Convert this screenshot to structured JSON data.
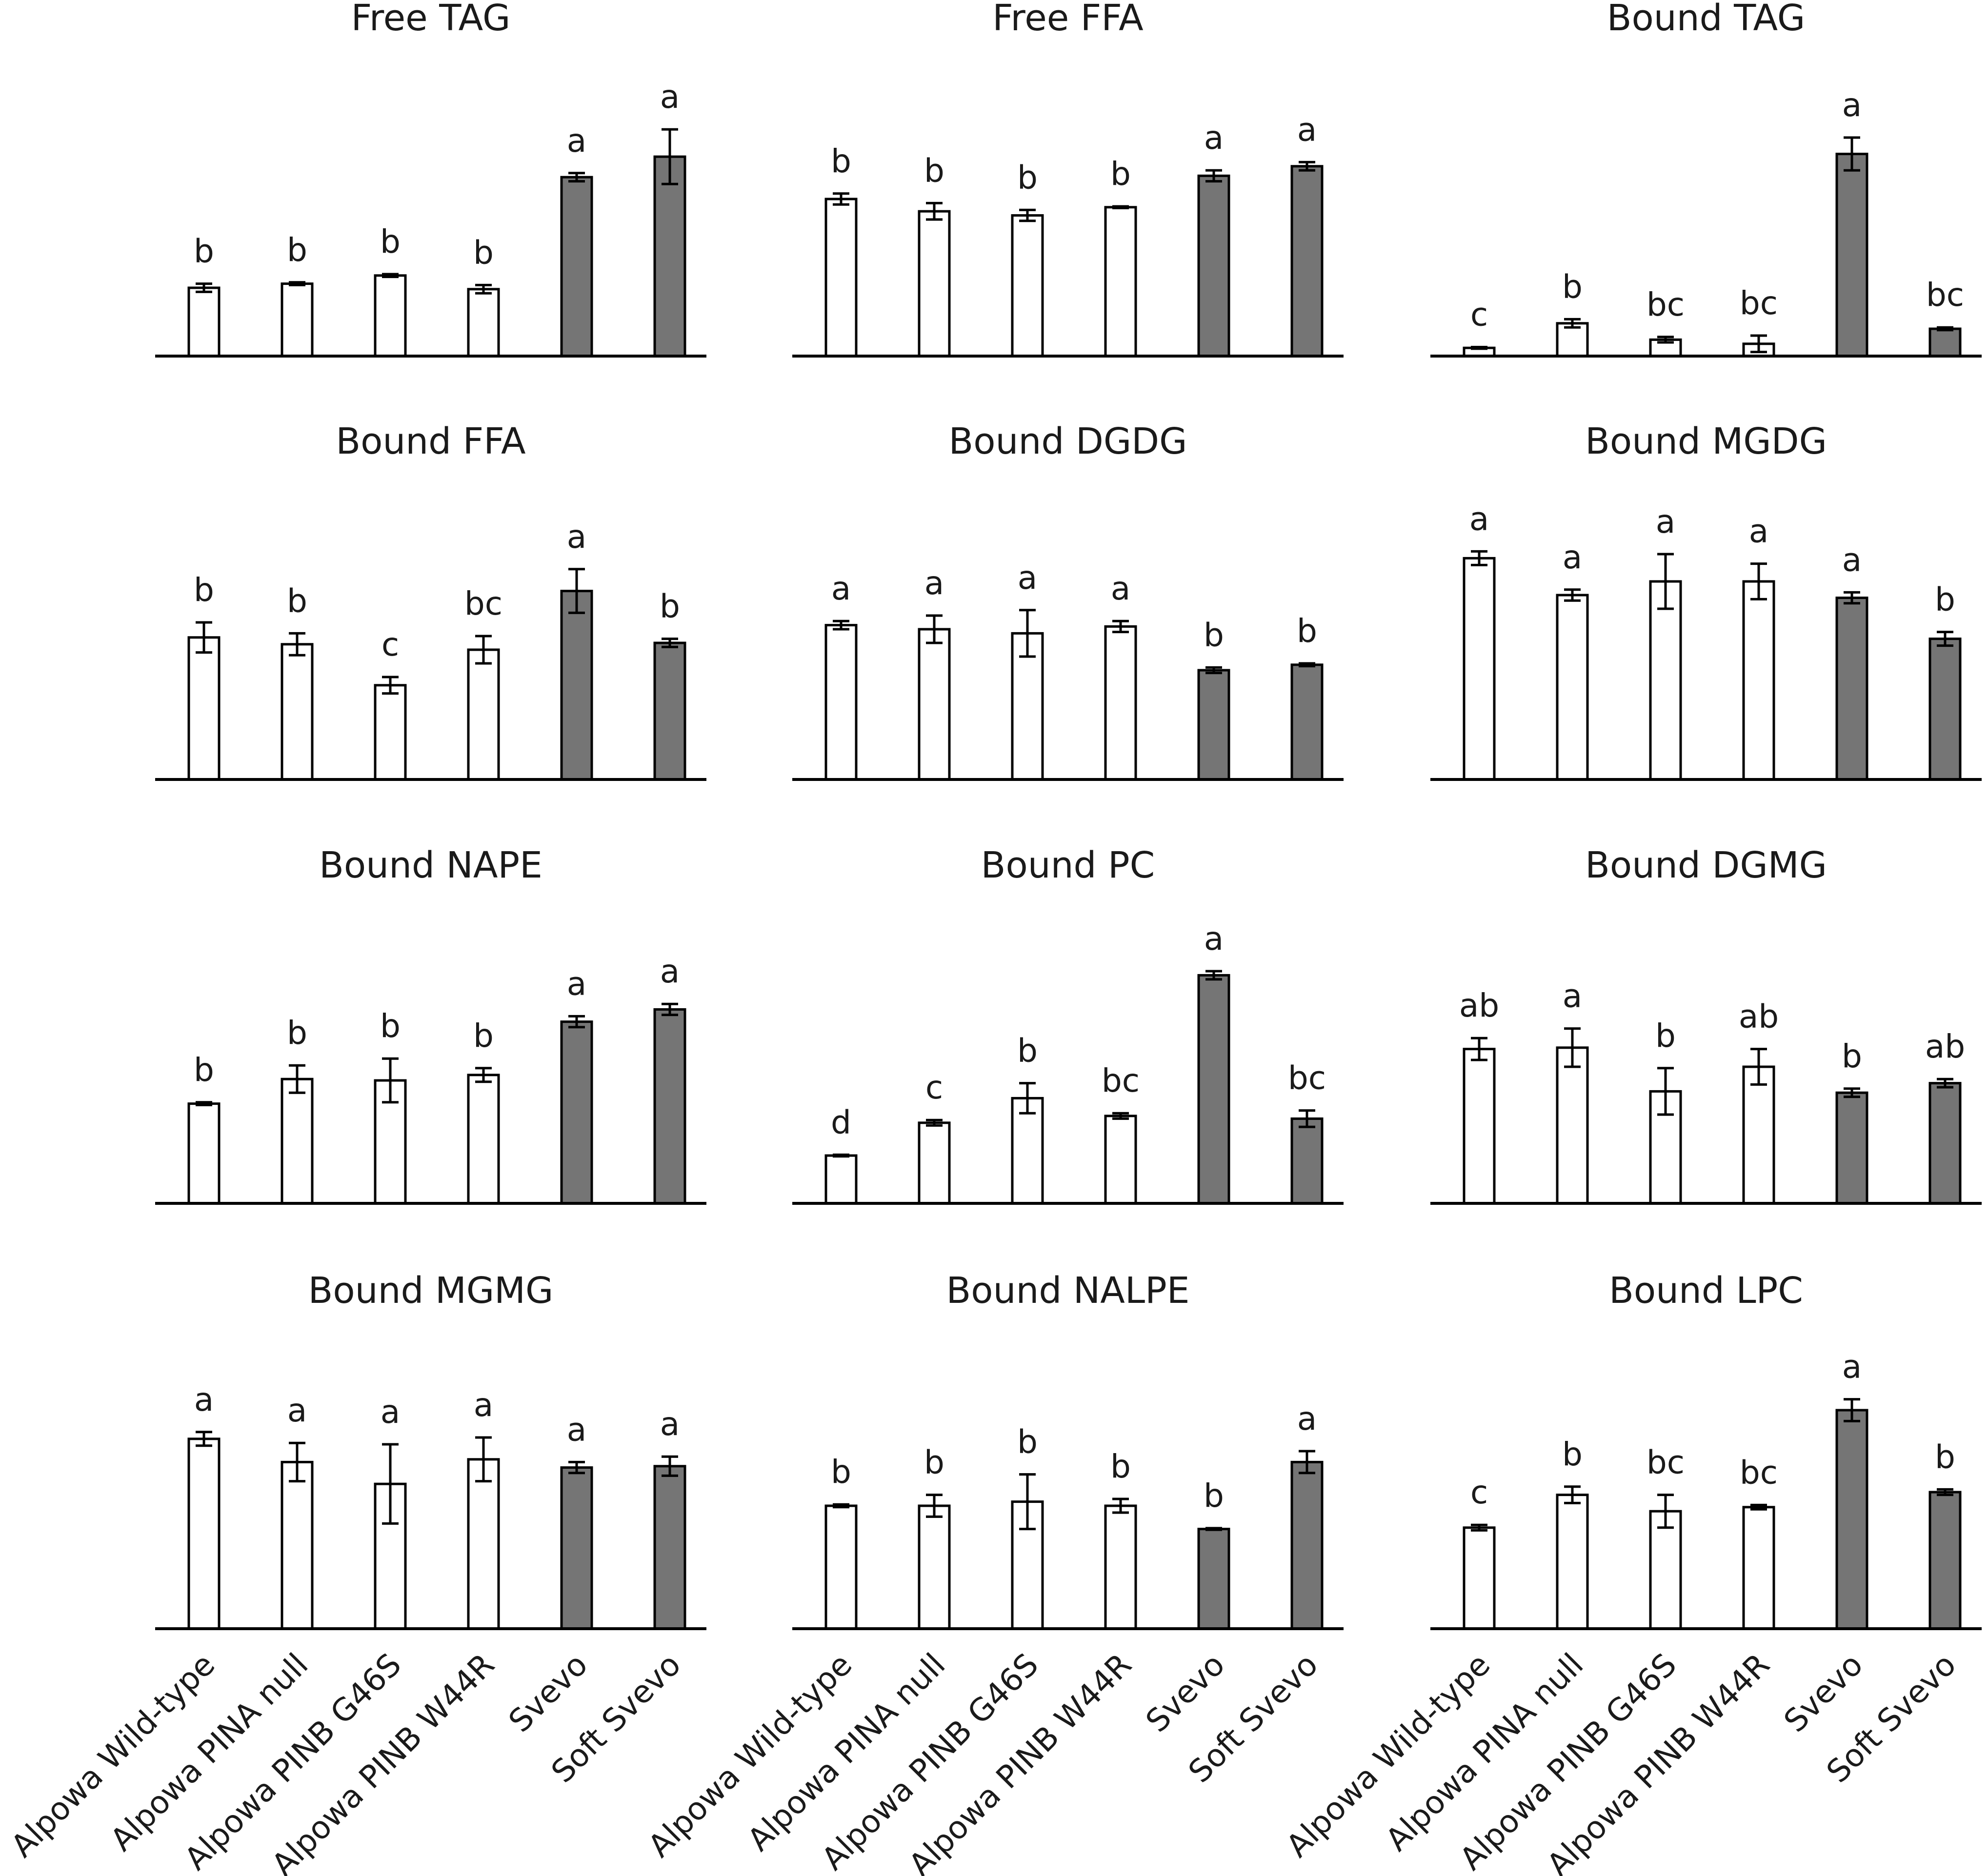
{
  "chart_data": [
    {
      "type": "bar",
      "title": "Free TAG",
      "categories": [
        "Alpowa Wild-type",
        "Alpowa PINA null",
        "Alpowa PINB G46S",
        "Alpowa PINB W44R",
        "Svevo",
        "Soft Svevo"
      ],
      "values": [
        0.25,
        0.265,
        0.295,
        0.245,
        0.655,
        0.73
      ],
      "errors": [
        0.015,
        0.005,
        0.005,
        0.015,
        0.015,
        0.1
      ],
      "labels": [
        "b",
        "b",
        "b",
        "b",
        "a",
        "a"
      ],
      "fills": [
        "#ffffff",
        "#ffffff",
        "#ffffff",
        "#ffffff",
        "#757575",
        "#757575"
      ],
      "ylim": [
        0,
        1
      ]
    },
    {
      "type": "bar",
      "title": "Free FFA",
      "categories": [
        "Alpowa Wild-type",
        "Alpowa PINA null",
        "Alpowa PINB G46S",
        "Alpowa PINB W44R",
        "Svevo",
        "Soft Svevo"
      ],
      "values": [
        0.575,
        0.53,
        0.515,
        0.545,
        0.66,
        0.695
      ],
      "errors": [
        0.02,
        0.03,
        0.02,
        0.003,
        0.02,
        0.015
      ],
      "labels": [
        "b",
        "b",
        "b",
        "b",
        "a",
        "a"
      ],
      "fills": [
        "#ffffff",
        "#ffffff",
        "#ffffff",
        "#ffffff",
        "#757575",
        "#757575"
      ],
      "ylim": [
        0,
        1
      ]
    },
    {
      "type": "bar",
      "title": "Bound TAG",
      "categories": [
        "Alpowa Wild-type",
        "Alpowa PINA null",
        "Alpowa PINB G46S",
        "Alpowa PINB W44R",
        "Svevo",
        "Soft Svevo"
      ],
      "values": [
        0.03,
        0.12,
        0.06,
        0.045,
        0.74,
        0.1
      ],
      "errors": [
        0.003,
        0.015,
        0.01,
        0.03,
        0.06,
        0.005
      ],
      "labels": [
        "c",
        "b",
        "bc",
        "bc",
        "a",
        "bc"
      ],
      "fills": [
        "#ffffff",
        "#ffffff",
        "#ffffff",
        "#ffffff",
        "#757575",
        "#757575"
      ],
      "ylim": [
        0,
        1
      ]
    },
    {
      "type": "bar",
      "title": "Bound FFA",
      "categories": [
        "Alpowa Wild-type",
        "Alpowa PINA null",
        "Alpowa PINB G46S",
        "Alpowa PINB W44R",
        "Svevo",
        "Soft Svevo"
      ],
      "values": [
        0.52,
        0.495,
        0.345,
        0.475,
        0.69,
        0.5
      ],
      "errors": [
        0.055,
        0.04,
        0.03,
        0.05,
        0.08,
        0.015
      ],
      "labels": [
        "b",
        "b",
        "c",
        "bc",
        "a",
        "b"
      ],
      "fills": [
        "#ffffff",
        "#ffffff",
        "#ffffff",
        "#ffffff",
        "#757575",
        "#757575"
      ],
      "ylim": [
        0,
        1
      ]
    },
    {
      "type": "bar",
      "title": "Bound DGDG",
      "categories": [
        "Alpowa Wild-type",
        "Alpowa PINA null",
        "Alpowa PINB G46S",
        "Alpowa PINB W44R",
        "Svevo",
        "Soft Svevo"
      ],
      "values": [
        0.565,
        0.55,
        0.535,
        0.56,
        0.4,
        0.42
      ],
      "errors": [
        0.015,
        0.05,
        0.085,
        0.02,
        0.01,
        0.005
      ],
      "labels": [
        "a",
        "a",
        "a",
        "a",
        "b",
        "b"
      ],
      "fills": [
        "#ffffff",
        "#ffffff",
        "#ffffff",
        "#ffffff",
        "#757575",
        "#757575"
      ],
      "ylim": [
        0,
        1
      ]
    },
    {
      "type": "bar",
      "title": "Bound MGDG",
      "categories": [
        "Alpowa Wild-type",
        "Alpowa PINA null",
        "Alpowa PINB G46S",
        "Alpowa PINB W44R",
        "Svevo",
        "Soft Svevo"
      ],
      "values": [
        0.81,
        0.675,
        0.725,
        0.725,
        0.665,
        0.515
      ],
      "errors": [
        0.025,
        0.02,
        0.1,
        0.065,
        0.02,
        0.025
      ],
      "labels": [
        "a",
        "a",
        "a",
        "a",
        "a",
        "b"
      ],
      "fills": [
        "#ffffff",
        "#ffffff",
        "#ffffff",
        "#ffffff",
        "#757575",
        "#757575"
      ],
      "ylim": [
        0,
        1
      ]
    },
    {
      "type": "bar",
      "title": "Bound NAPE",
      "categories": [
        "Alpowa Wild-type",
        "Alpowa PINA null",
        "Alpowa PINB G46S",
        "Alpowa PINB W44R",
        "Svevo",
        "Soft Svevo"
      ],
      "values": [
        0.365,
        0.455,
        0.45,
        0.47,
        0.665,
        0.71
      ],
      "errors": [
        0.005,
        0.05,
        0.08,
        0.025,
        0.02,
        0.02
      ],
      "labels": [
        "b",
        "b",
        "b",
        "b",
        "a",
        "a"
      ],
      "fills": [
        "#ffffff",
        "#ffffff",
        "#ffffff",
        "#ffffff",
        "#757575",
        "#757575"
      ],
      "ylim": [
        0,
        1
      ]
    },
    {
      "type": "bar",
      "title": "Bound PC",
      "categories": [
        "Alpowa Wild-type",
        "Alpowa PINA null",
        "Alpowa PINB G46S",
        "Alpowa PINB W44R",
        "Svevo",
        "Soft Svevo"
      ],
      "values": [
        0.175,
        0.295,
        0.385,
        0.32,
        0.835,
        0.31
      ],
      "errors": [
        0.003,
        0.01,
        0.055,
        0.01,
        0.015,
        0.03
      ],
      "labels": [
        "d",
        "c",
        "b",
        "bc",
        "a",
        "bc"
      ],
      "fills": [
        "#ffffff",
        "#ffffff",
        "#ffffff",
        "#ffffff",
        "#757575",
        "#757575"
      ],
      "ylim": [
        0,
        1
      ]
    },
    {
      "type": "bar",
      "title": "Bound DGMG",
      "categories": [
        "Alpowa Wild-type",
        "Alpowa PINA null",
        "Alpowa PINB G46S",
        "Alpowa PINB W44R",
        "Svevo",
        "Soft Svevo"
      ],
      "values": [
        0.565,
        0.57,
        0.41,
        0.5,
        0.405,
        0.44
      ],
      "errors": [
        0.04,
        0.07,
        0.085,
        0.065,
        0.015,
        0.015
      ],
      "labels": [
        "ab",
        "a",
        "b",
        "ab",
        "b",
        "ab"
      ],
      "fills": [
        "#ffffff",
        "#ffffff",
        "#ffffff",
        "#ffffff",
        "#757575",
        "#757575"
      ],
      "ylim": [
        0,
        1
      ]
    },
    {
      "type": "bar",
      "title": "Bound MGMG",
      "categories": [
        "Alpowa Wild-type",
        "Alpowa PINA null",
        "Alpowa PINB G46S",
        "Alpowa PINB W44R",
        "Svevo",
        "Soft Svevo"
      ],
      "values": [
        0.695,
        0.61,
        0.53,
        0.62,
        0.59,
        0.595
      ],
      "errors": [
        0.025,
        0.07,
        0.145,
        0.08,
        0.02,
        0.035
      ],
      "labels": [
        "a",
        "a",
        "a",
        "a",
        "a",
        "a"
      ],
      "fills": [
        "#ffffff",
        "#ffffff",
        "#ffffff",
        "#ffffff",
        "#757575",
        "#757575"
      ],
      "ylim": [
        0,
        1
      ]
    },
    {
      "type": "bar",
      "title": "Bound NALPE",
      "categories": [
        "Alpowa Wild-type",
        "Alpowa PINA null",
        "Alpowa PINB G46S",
        "Alpowa PINB W44R",
        "Svevo",
        "Soft Svevo"
      ],
      "values": [
        0.45,
        0.45,
        0.465,
        0.45,
        0.365,
        0.61
      ],
      "errors": [
        0.005,
        0.04,
        0.1,
        0.025,
        0.003,
        0.04
      ],
      "labels": [
        "b",
        "b",
        "b",
        "b",
        "b",
        "a"
      ],
      "fills": [
        "#ffffff",
        "#ffffff",
        "#ffffff",
        "#ffffff",
        "#757575",
        "#757575"
      ],
      "ylim": [
        0,
        1
      ]
    },
    {
      "type": "bar",
      "title": "Bound LPC",
      "categories": [
        "Alpowa Wild-type",
        "Alpowa PINA null",
        "Alpowa PINB G46S",
        "Alpowa PINB W44R",
        "Svevo",
        "Soft Svevo"
      ],
      "values": [
        0.37,
        0.49,
        0.43,
        0.445,
        0.8,
        0.5
      ],
      "errors": [
        0.01,
        0.03,
        0.06,
        0.008,
        0.04,
        0.01
      ],
      "labels": [
        "c",
        "b",
        "bc",
        "bc",
        "a",
        "b"
      ],
      "fills": [
        "#ffffff",
        "#ffffff",
        "#ffffff",
        "#ffffff",
        "#757575",
        "#757575"
      ],
      "ylim": [
        0,
        1
      ]
    }
  ]
}
